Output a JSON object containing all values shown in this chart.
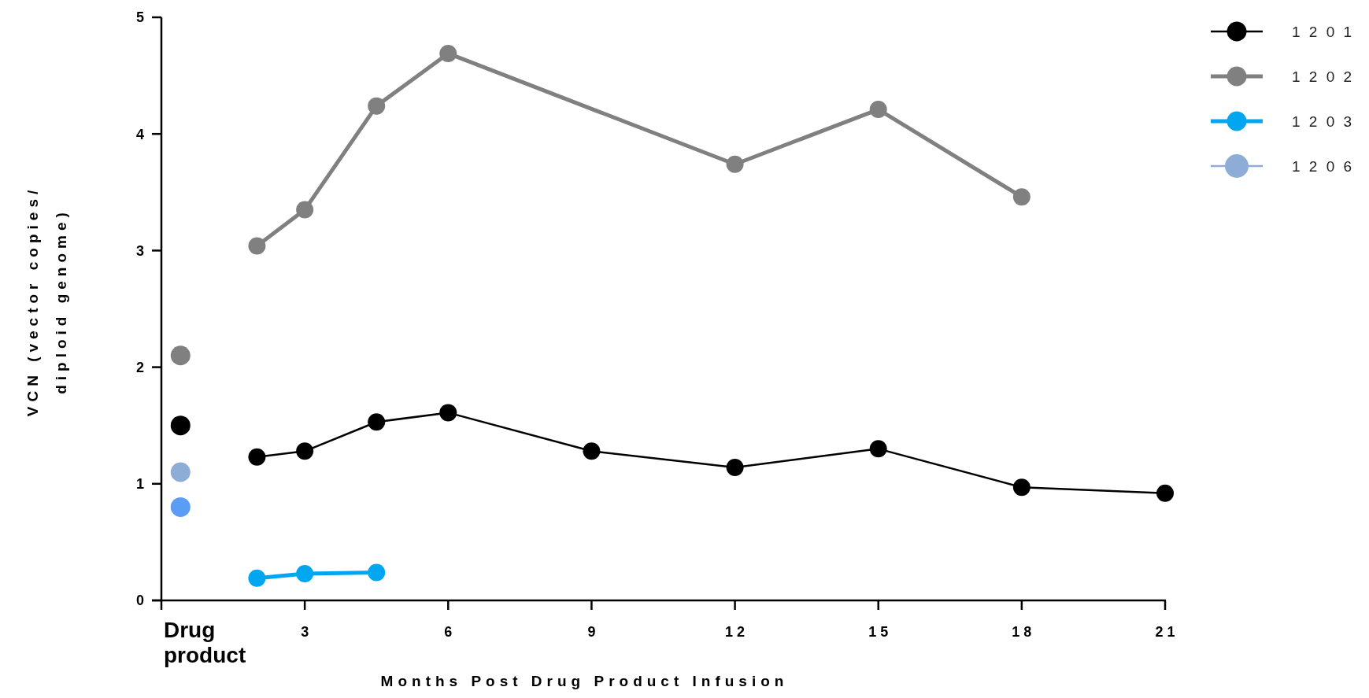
{
  "chart_data": {
    "type": "line",
    "xlabel": "Months Post Drug Product Infusion",
    "ylabel": "VCN (vector copies/ diploid genome)",
    "xlim": [
      0,
      21
    ],
    "ylim": [
      0,
      5
    ],
    "xticks": [
      {
        "value": 0,
        "label": null
      },
      3,
      6,
      9,
      {
        "value": 12,
        "label": "1 2"
      },
      {
        "value": 15,
        "label": "1 5"
      },
      {
        "value": 18,
        "label": "1 8"
      },
      {
        "value": 21,
        "label": "2 1"
      }
    ],
    "yticks": [
      0,
      1,
      2,
      3,
      4,
      5
    ],
    "grid": false,
    "legend": "top right",
    "marker": "circle",
    "line_style": "solid",
    "annotations": [
      "Drug product"
    ],
    "series": [
      {
        "name": "1 2 0 1",
        "color": "#000000",
        "x": [
          2,
          3,
          4.5,
          6,
          9,
          12,
          15,
          18,
          21
        ],
        "values": [
          1.23,
          1.28,
          1.53,
          1.61,
          1.28,
          1.14,
          1.3,
          0.97,
          0.92
        ]
      },
      {
        "name": "1 2 0 2",
        "color": "#808080",
        "x": [
          2,
          3,
          4.5,
          6,
          12,
          15,
          18
        ],
        "values": [
          3.04,
          3.35,
          4.24,
          4.69,
          3.74,
          4.21,
          3.46
        ]
      },
      {
        "name": "1 2 0 3",
        "color": "#00a6f0",
        "x": [
          2,
          3,
          4.5
        ],
        "values": [
          0.19,
          0.23,
          0.24
        ]
      },
      {
        "name": "1 2 0 6",
        "color": "#8eadd6",
        "type": "scatter",
        "x": [
          0.4
        ],
        "values": [
          1.1
        ]
      },
      {
        "type": "scatter",
        "color": "#000000",
        "x": [
          0.4
        ],
        "values": [
          1.5
        ]
      },
      {
        "type": "scatter",
        "color": "#808080",
        "x": [
          0.4
        ],
        "values": [
          2.1
        ]
      },
      {
        "type": "scatter",
        "color": "#5b9cf5",
        "x": [
          0.4
        ],
        "values": [
          0.8
        ]
      }
    ]
  }
}
